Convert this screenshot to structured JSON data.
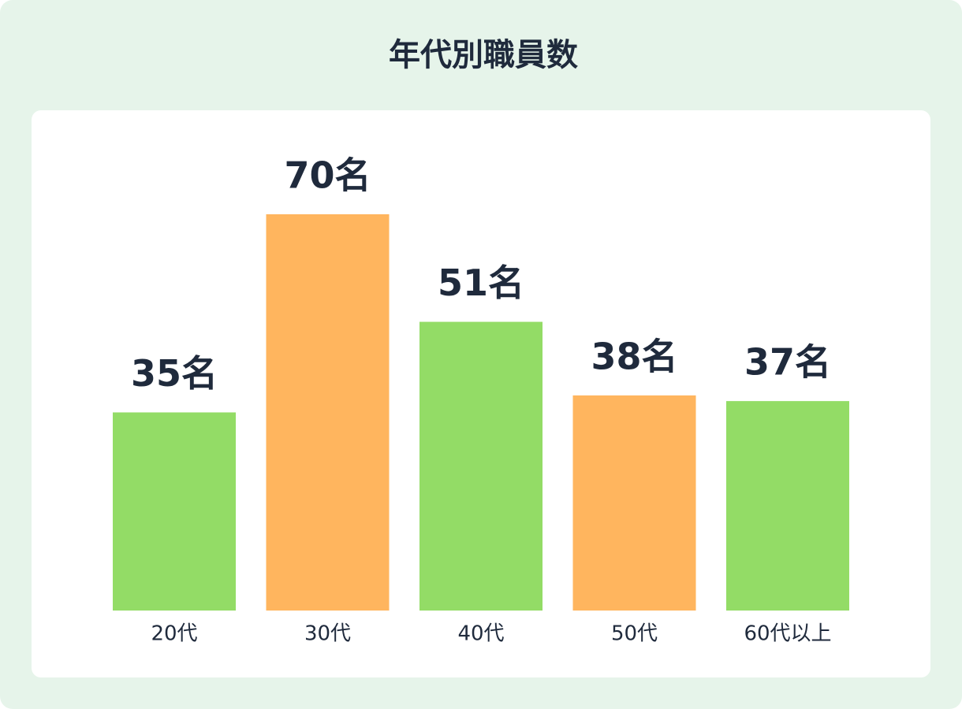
{
  "chart_data": {
    "type": "bar",
    "title": "年代別職員数",
    "categories": [
      "20代",
      "30代",
      "40代",
      "50代",
      "60代以上"
    ],
    "values": [
      35,
      70,
      51,
      38,
      37
    ],
    "value_labels": [
      "35名",
      "70名",
      "51名",
      "38名",
      "37名"
    ],
    "colors": [
      "#93dc66",
      "#ffb55e",
      "#93dc66",
      "#ffb55e",
      "#93dc66"
    ]
  }
}
